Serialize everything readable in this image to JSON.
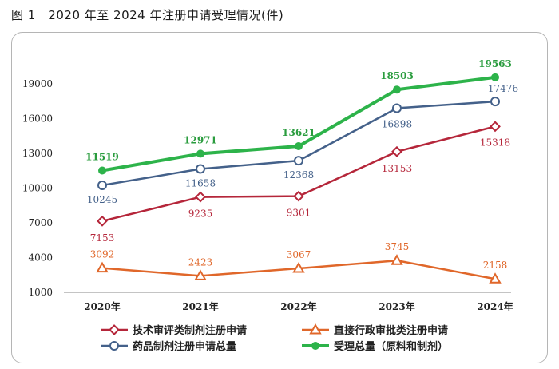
{
  "figure": {
    "title": "图 1　2020 年至 2024 年注册申请受理情况(件)"
  },
  "chart_data": {
    "type": "line",
    "title": "",
    "xlabel": "",
    "ylabel": "",
    "categories": [
      "2020年",
      "2021年",
      "2022年",
      "2023年",
      "2024年"
    ],
    "yticks": [
      "1000",
      "4000",
      "7000",
      "10000",
      "13000",
      "16000",
      "19000"
    ],
    "ylim": [
      1000,
      21000
    ],
    "grid": false,
    "legend_position": "bottom",
    "series": [
      {
        "name": "受理总量（原料和制剂）",
        "values": [
          11519,
          12971,
          13621,
          18503,
          19563
        ],
        "labels": [
          "11519",
          "12971",
          "13621",
          "18503",
          "19563"
        ],
        "color": "#2db34a",
        "marker": "circle-filled"
      },
      {
        "name": "药品制剂注册申请总量",
        "values": [
          10245,
          11658,
          12368,
          16898,
          17476
        ],
        "labels": [
          "10245",
          "11658",
          "12368",
          "16898",
          "17476"
        ],
        "color": "#44618a",
        "marker": "circle-open"
      },
      {
        "name": "技术审评类制剂注册申请",
        "values": [
          7153,
          9235,
          9301,
          13153,
          15318
        ],
        "labels": [
          "7153",
          "9235",
          "9301",
          "13153",
          "15318"
        ],
        "color": "#b5263a",
        "marker": "diamond-open"
      },
      {
        "name": "直接行政审批类注册申请",
        "values": [
          3092,
          2423,
          3067,
          3745,
          2158
        ],
        "labels": [
          "3092",
          "2423",
          "3067",
          "3745",
          "2158"
        ],
        "color": "#e0672a",
        "marker": "triangle-open"
      }
    ],
    "legend_order": [
      2,
      3,
      1,
      0
    ]
  }
}
